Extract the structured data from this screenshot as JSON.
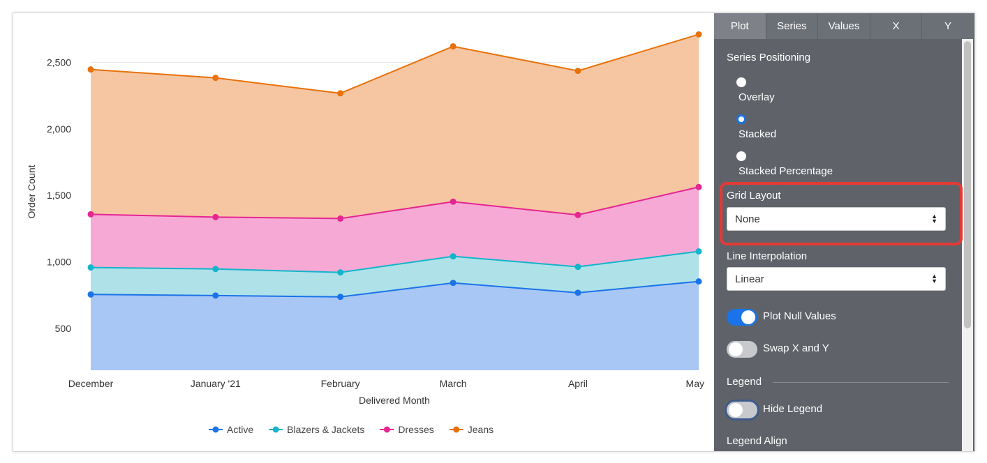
{
  "chart_data": {
    "type": "area",
    "stacked": true,
    "categories": [
      "December",
      "January '21",
      "February",
      "March",
      "April",
      "May"
    ],
    "xlabel": "Delivered Month",
    "ylabel": "Order Count",
    "yticks": [
      500,
      1000,
      1500,
      2000,
      2500
    ],
    "ytick_labels": [
      "500",
      "1,000",
      "1,500",
      "2,000",
      "2,500"
    ],
    "ylim": [
      185,
      2870
    ],
    "grid": true,
    "legend_position": "bottom",
    "series": [
      {
        "name": "Active",
        "color": "#1a73e8",
        "fill": "#a8c7f5",
        "values": [
          755,
          747,
          737,
          842,
          768,
          853
        ]
      },
      {
        "name": "Blazers & Jackets",
        "color": "#12b5cb",
        "fill": "#afe1e9",
        "values": [
          203,
          200,
          184,
          200,
          195,
          226
        ]
      },
      {
        "name": "Dresses",
        "color": "#e52592",
        "fill": "#f6a9d5",
        "values": [
          400,
          390,
          405,
          411,
          390,
          484
        ]
      },
      {
        "name": "Jeans",
        "color": "#e8710a",
        "fill": "#f6c6a2",
        "values": [
          1089,
          1047,
          942,
          1168,
          1084,
          1148
        ]
      }
    ]
  },
  "panel": {
    "tabs": [
      {
        "label": "Plot",
        "active": true
      },
      {
        "label": "Series",
        "active": false
      },
      {
        "label": "Values",
        "active": false
      },
      {
        "label": "X",
        "active": false
      },
      {
        "label": "Y",
        "active": false
      }
    ],
    "series_positioning": {
      "label": "Series Positioning",
      "options": [
        {
          "label": "Overlay",
          "selected": false
        },
        {
          "label": "Stacked",
          "selected": true
        },
        {
          "label": "Stacked Percentage",
          "selected": false
        }
      ]
    },
    "grid_layout": {
      "label": "Grid Layout",
      "value": "None"
    },
    "line_interpolation": {
      "label": "Line Interpolation",
      "value": "Linear"
    },
    "plot_null_values": {
      "label": "Plot Null Values",
      "on": true
    },
    "swap_xy": {
      "label": "Swap X and Y",
      "on": false
    },
    "legend_section": "Legend",
    "hide_legend": {
      "label": "Hide Legend",
      "on": false
    },
    "legend_align": {
      "label": "Legend Align"
    },
    "highlight_color": "#e53935"
  }
}
